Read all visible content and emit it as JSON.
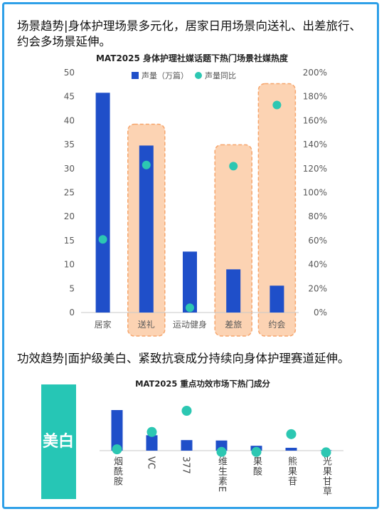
{
  "heading1": "场景趋势|身体护理场景多元化，居家日用场景向送礼、出差旅行、约会多场景延伸。",
  "heading2": "功效趋势|面护级美白、紧致抗衰成分持续向身体护理赛道延伸。",
  "colors": {
    "bar": "#1f4fc9",
    "dot": "#2cc7b2",
    "highlight": "#fcd3b3",
    "highlight_border": "#f6a56c",
    "side_tag": "#26c6b5",
    "frame": "#2fa0e8"
  },
  "chart_data": [
    {
      "type": "bar",
      "title": "MAT2025 身体护理社媒话题下热门场景社媒热度",
      "categories": [
        "居家",
        "送礼",
        "运动健身",
        "差旅",
        "约会"
      ],
      "series": [
        {
          "name": "声量（万篇）",
          "type": "bar",
          "axis": "left",
          "values": [
            45.8,
            34.8,
            12.7,
            9.0,
            5.6
          ]
        },
        {
          "name": "声量同比",
          "type": "scatter",
          "axis": "right",
          "values": [
            61,
            123,
            4,
            122,
            173
          ]
        }
      ],
      "left_axis": {
        "ylim": [
          0,
          50
        ],
        "ticks": [
          "0",
          "5",
          "10",
          "15",
          "20",
          "25",
          "30",
          "35",
          "40",
          "45",
          "50"
        ]
      },
      "right_axis": {
        "ylim": [
          0,
          200
        ],
        "ticks": [
          "0%",
          "20%",
          "40%",
          "60%",
          "80%",
          "100%",
          "120%",
          "140%",
          "160%",
          "180%",
          "200%"
        ]
      },
      "highlighted_categories": [
        "送礼",
        "差旅",
        "约会"
      ],
      "legend_position": "top",
      "grid": false
    },
    {
      "type": "bar",
      "title": "MAT2025 重点功效市场下热门成分",
      "side_label": "美白",
      "categories": [
        "烟酰胺",
        "VC",
        "377",
        "维生素E",
        "果酸",
        "熊果苷",
        "光果甘草"
      ],
      "series": [
        {
          "type": "bar",
          "values": [
            100,
            38,
            26,
            25,
            12,
            7,
            1
          ]
        },
        {
          "type": "scatter",
          "values": [
            8,
            48,
            97,
            2,
            2,
            43,
            1
          ]
        }
      ],
      "grid": false
    }
  ]
}
